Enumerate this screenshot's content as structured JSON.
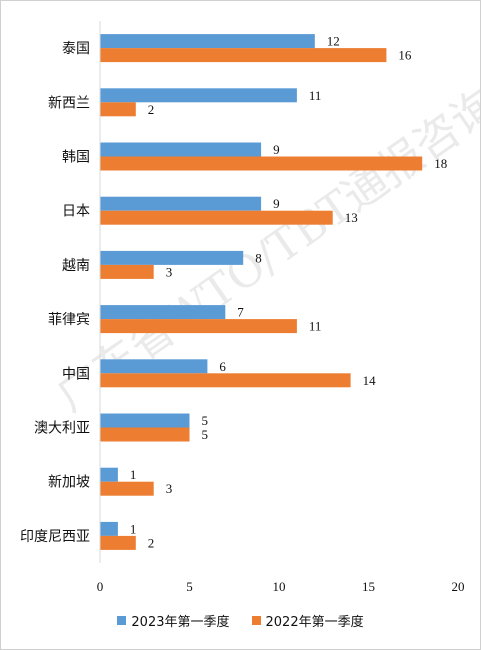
{
  "chart_data": {
    "type": "bar",
    "orientation": "horizontal",
    "categories": [
      "泰国",
      "新西兰",
      "韩国",
      "日本",
      "越南",
      "菲律宾",
      "中国",
      "澳大利亚",
      "新加坡",
      "印度尼西亚"
    ],
    "series": [
      {
        "name": "2023年第一季度",
        "color": "#5b9bd5",
        "values": [
          12,
          11,
          9,
          9,
          8,
          7,
          6,
          5,
          1,
          1
        ]
      },
      {
        "name": "2022年第一季度",
        "color": "#ed7d31",
        "values": [
          16,
          2,
          18,
          13,
          3,
          11,
          14,
          5,
          3,
          2
        ]
      }
    ],
    "xlim": [
      0,
      20
    ],
    "xticks": [
      "0",
      "5",
      "10",
      "15",
      "20"
    ],
    "grid": false,
    "legend_position": "bottom"
  },
  "watermark": "广东省WTO/TBT通报咨询研究中心"
}
